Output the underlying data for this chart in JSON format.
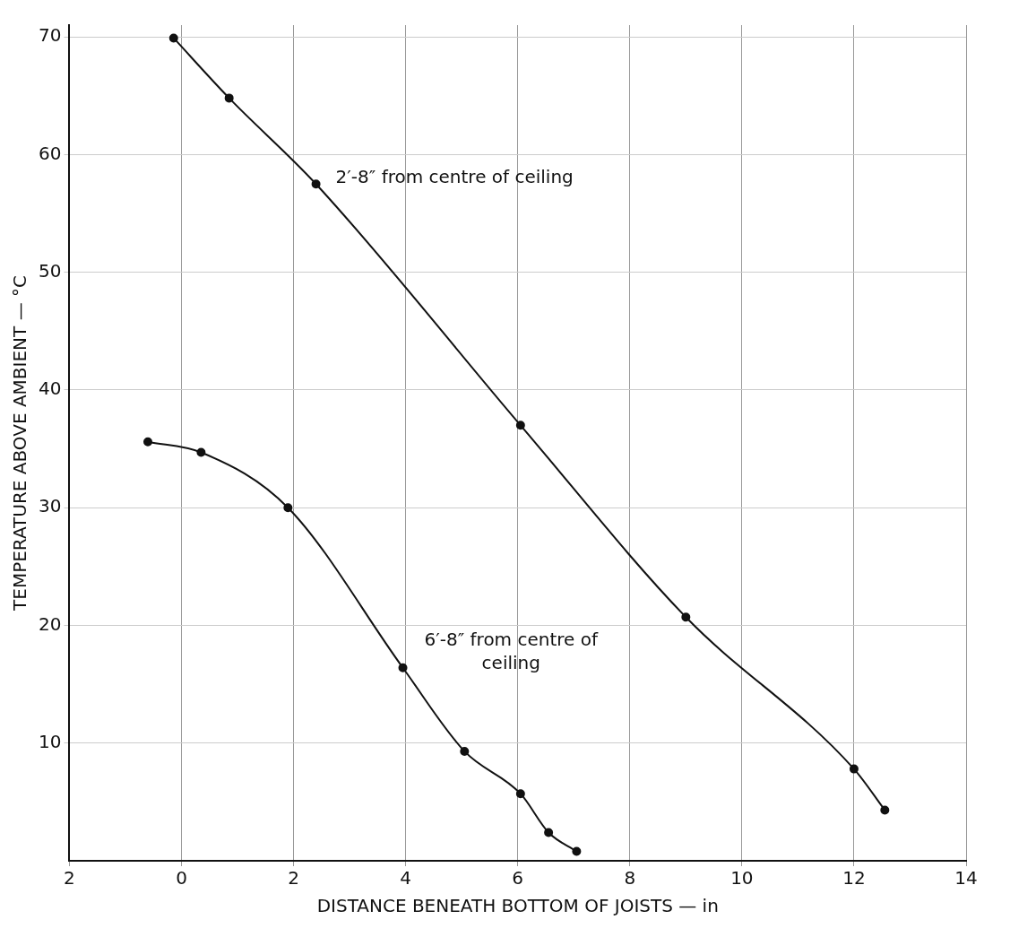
{
  "chart_data": {
    "type": "line",
    "xlabel": "DISTANCE BENEATH BOTTOM OF JOISTS — in",
    "ylabel": "TEMPERATURE ABOVE AMBIENT — °C",
    "xlim": [
      -2,
      14
    ],
    "xticks": [
      {
        "value": -2,
        "label": "2"
      },
      0,
      2,
      4,
      6,
      8,
      10,
      12,
      14
    ],
    "ylim": [
      0,
      71
    ],
    "yticks": [
      10,
      20,
      30,
      40,
      50,
      60,
      70
    ],
    "grid": true,
    "marker": "circle",
    "line_style": "solid",
    "series": [
      {
        "name": "2′-8″ from centre of ceiling",
        "color": "#111111",
        "x": [
          -0.14,
          0.85,
          2.4,
          6.05,
          9,
          12,
          12.55
        ],
        "values": [
          69.9,
          64.8,
          57.5,
          37,
          20.7,
          7.8,
          4.3
        ]
      },
      {
        "name": "6′-8″ from centre of ceiling",
        "color": "#111111",
        "x": [
          -0.6,
          0.35,
          1.9,
          3.95,
          5.05,
          6.05,
          6.55,
          7.05
        ],
        "values": [
          35.6,
          34.7,
          30,
          16.4,
          9.3,
          5.7,
          2.4,
          0.8
        ]
      }
    ]
  }
}
